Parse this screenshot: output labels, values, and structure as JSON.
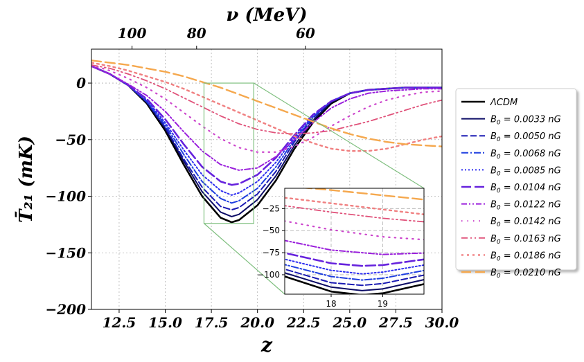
{
  "chart_data": {
    "type": "line",
    "title": "",
    "xlabel": "z",
    "ylabel": "T̄₂₁ (mK)",
    "top_axis": {
      "label": "ν (MeV)",
      "ticks": [
        {
          "label": "100",
          "z": 13.2
        },
        {
          "label": "80",
          "z": 16.7
        },
        {
          "label": "60",
          "z": 22.6
        }
      ]
    },
    "xlim": [
      11.0,
      30.0
    ],
    "ylim": [
      -200,
      30
    ],
    "xticks": [
      12.5,
      15.0,
      17.5,
      20.0,
      22.5,
      25.0,
      27.5,
      30.0
    ],
    "xtick_labels": [
      "12.5",
      "15.0",
      "17.5",
      "20.0",
      "22.5",
      "25.0",
      "27.5",
      "30.0"
    ],
    "yticks": [
      0,
      -50,
      -100,
      -150,
      -200
    ],
    "ytick_labels": [
      "0",
      "−50",
      "−100",
      "−150",
      "−200"
    ],
    "grid": true,
    "legend_position": "right, outside",
    "series": [
      {
        "name": "ΛCDM",
        "color": "#000000",
        "dash": "solid",
        "width": 2.6,
        "x": [
          11,
          12,
          13,
          14,
          15,
          16,
          17,
          18,
          18.6,
          19,
          20,
          21,
          22,
          23,
          24,
          25,
          26,
          27,
          28,
          29,
          30
        ],
        "y": [
          15,
          8,
          -2,
          -18,
          -42,
          -72,
          -100,
          -119,
          -123,
          -121,
          -108,
          -86,
          -58,
          -35,
          -18,
          -9,
          -6,
          -5,
          -4,
          -4,
          -4
        ]
      },
      {
        "name": "B_0 = 0.0033 nG",
        "color": "#0c0c66",
        "dash": "solid",
        "width": 2,
        "x": [
          11,
          12,
          13,
          14,
          15,
          16,
          17,
          18,
          18.6,
          19,
          20,
          21,
          22,
          23,
          24,
          25,
          26,
          27,
          28,
          29,
          30
        ],
        "y": [
          15,
          8,
          -2,
          -17,
          -40,
          -69,
          -96,
          -114,
          -118,
          -116,
          -103,
          -82,
          -55,
          -33,
          -17,
          -9,
          -6,
          -5,
          -4,
          -4,
          -4
        ]
      },
      {
        "name": "B_0 = 0.0050 nG",
        "color": "#1a1ab3",
        "dash": "9,4",
        "width": 2,
        "x": [
          11,
          12,
          13,
          14,
          15,
          16,
          17,
          18,
          18.6,
          19,
          20,
          21,
          22,
          23,
          24,
          25,
          26,
          27,
          28,
          29,
          30
        ],
        "y": [
          15,
          8,
          -2,
          -17,
          -39,
          -67,
          -92,
          -109,
          -112,
          -110,
          -98,
          -78,
          -52,
          -31,
          -16,
          -9,
          -6,
          -5,
          -4,
          -4,
          -4
        ]
      },
      {
        "name": "B_0 = 0.0068 nG",
        "color": "#1f3fe0",
        "dash": "10,3,2,3",
        "width": 2,
        "x": [
          11,
          12,
          13,
          14,
          15,
          16,
          17,
          18,
          18.6,
          19,
          20,
          21,
          22,
          23,
          24,
          25,
          26,
          27,
          28,
          29,
          30
        ],
        "y": [
          15,
          8,
          -2,
          -16,
          -37,
          -63,
          -87,
          -102,
          -106,
          -104,
          -93,
          -74,
          -50,
          -30,
          -16,
          -9,
          -6,
          -5,
          -4,
          -4,
          -4
        ]
      },
      {
        "name": "B_0 = 0.0085 nG",
        "color": "#2e2ef0",
        "dash": "2,3",
        "width": 2,
        "x": [
          11,
          12,
          13,
          14,
          15,
          16,
          17,
          18,
          18.6,
          19,
          20,
          21,
          22,
          23,
          24,
          25,
          26,
          27,
          28,
          29,
          30
        ],
        "y": [
          15,
          8,
          -2,
          -15,
          -35,
          -59,
          -81,
          -95,
          -99,
          -97,
          -87,
          -70,
          -48,
          -29,
          -16,
          -9,
          -6,
          -5,
          -4,
          -4,
          -4
        ]
      },
      {
        "name": "B_0 = 0.0104 nG",
        "color": "#6622dd",
        "dash": "14,5",
        "width": 2.6,
        "x": [
          11,
          12,
          13,
          14,
          15,
          16,
          17,
          18,
          18.6,
          19,
          20,
          21,
          22,
          23,
          24,
          25,
          26,
          27,
          28,
          29,
          30
        ],
        "y": [
          15,
          8,
          -2,
          -14,
          -32,
          -54,
          -74,
          -87,
          -90,
          -89,
          -81,
          -66,
          -46,
          -28,
          -16,
          -9,
          -6,
          -5,
          -4,
          -4,
          -4
        ]
      },
      {
        "name": "B_0 = 0.0122 nG",
        "color": "#9a1fdc",
        "dash": "8,3,2,3,2,3",
        "width": 2,
        "x": [
          11,
          12,
          13,
          14,
          15,
          16,
          17,
          18,
          19,
          20,
          21,
          22,
          23,
          24,
          25,
          26,
          27,
          28,
          29,
          30
        ],
        "y": [
          15,
          8,
          -1,
          -11,
          -25,
          -43,
          -60,
          -72,
          -77,
          -75,
          -65,
          -50,
          -35,
          -22,
          -14,
          -9,
          -7,
          -6,
          -5,
          -5
        ]
      },
      {
        "name": "B_0 = 0.0142 nG",
        "color": "#cc44cc",
        "dash": "1.5,7",
        "width": 2.2,
        "x": [
          11,
          12,
          13,
          14,
          15,
          16,
          17,
          18,
          19,
          20,
          21,
          22,
          23,
          24,
          25,
          26,
          27,
          28,
          29,
          30
        ],
        "y": [
          16,
          11,
          4,
          -4,
          -14,
          -26,
          -38,
          -49,
          -57,
          -61,
          -61,
          -56,
          -48,
          -38,
          -29,
          -21,
          -15,
          -11,
          -8,
          -7
        ]
      },
      {
        "name": "B_0 = 0.0163 nG",
        "color": "#e0527a",
        "dash": "9,4,2,4,2,4",
        "width": 1.8,
        "x": [
          11,
          12,
          13,
          14,
          15,
          16,
          17,
          18,
          19,
          20,
          21,
          22,
          23,
          24,
          25,
          26,
          27,
          28,
          29,
          30
        ],
        "y": [
          16,
          13,
          8,
          2,
          -5,
          -13,
          -21,
          -29,
          -36,
          -41,
          -44,
          -45,
          -44,
          -42,
          -38,
          -34,
          -29,
          -24,
          -19,
          -15
        ]
      },
      {
        "name": "B_0 = 0.0186 nG",
        "color": "#f07f80",
        "dash": "3,5",
        "width": 2.4,
        "x": [
          11,
          12,
          13,
          14,
          15,
          16,
          17,
          18,
          19,
          20,
          21,
          22,
          23,
          24,
          25,
          26,
          27,
          28,
          29,
          30
        ],
        "y": [
          18,
          15,
          11,
          6,
          1,
          -5,
          -12,
          -19,
          -26,
          -33,
          -40,
          -47,
          -53,
          -58,
          -60,
          -60,
          -58,
          -54,
          -50,
          -47
        ]
      },
      {
        "name": "B_0 = 0.0210 nG",
        "color": "#f5a84e",
        "dash": "14,6",
        "width": 2.4,
        "x": [
          11,
          12,
          13,
          14,
          15,
          16,
          17,
          18,
          19,
          20,
          21,
          22,
          23,
          24,
          25,
          26,
          27,
          28,
          29,
          30
        ],
        "y": [
          20,
          18,
          16,
          13,
          10,
          6,
          1,
          -4,
          -10,
          -16,
          -22,
          -28,
          -34,
          -40,
          -45,
          -49,
          -52,
          -54,
          -55,
          -56
        ]
      }
    ],
    "inset": {
      "xlim": [
        17.1,
        19.8
      ],
      "ylim": [
        -122,
        -2
      ],
      "xticks": [
        18,
        19
      ],
      "xtick_labels": [
        "18",
        "19"
      ],
      "yticks": [
        -25,
        -50,
        -75,
        -100
      ],
      "ytick_labels": [
        "−25",
        "−50",
        "−75",
        "−100"
      ],
      "source_box": {
        "x": [
          17.1,
          19.8
        ],
        "y": [
          -124,
          0
        ]
      }
    }
  }
}
